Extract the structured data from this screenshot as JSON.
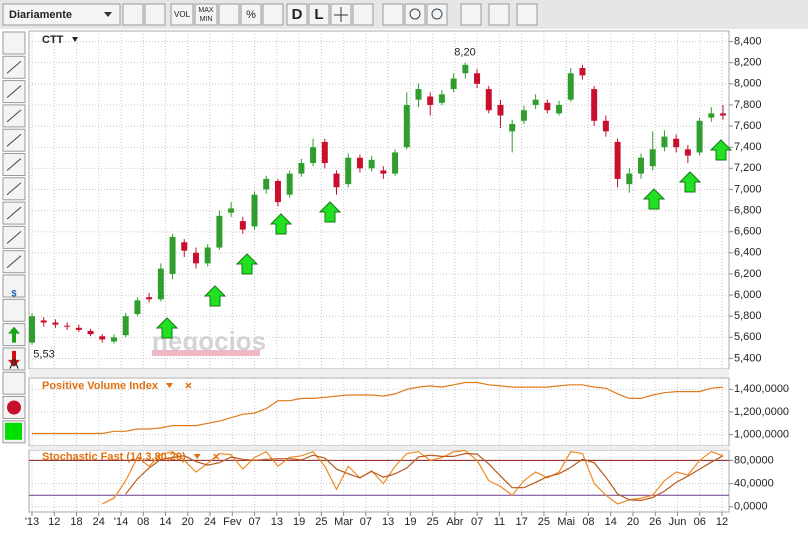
{
  "toolbar": {
    "interval": "Diariamente",
    "vol": "VOL",
    "maxmin": [
      "MAX",
      "MIN"
    ],
    "percent": "%",
    "d": "D",
    "l": "L"
  },
  "left_tools": {
    "dollar": "$",
    "a": "A"
  },
  "x_axis": {
    "labels": [
      "'13",
      "12",
      "18",
      "24",
      "'14",
      "08",
      "14",
      "20",
      "24",
      "Fev",
      "07",
      "13",
      "19",
      "25",
      "Mar",
      "07",
      "13",
      "19",
      "25",
      "Abr",
      "07",
      "11",
      "17",
      "25",
      "Mai",
      "08",
      "14",
      "20",
      "26",
      "Jun",
      "06",
      "12"
    ]
  },
  "chart_data": [
    {
      "type": "candlestick",
      "title": "CTT",
      "watermark": "negocios",
      "up_color": "#2f9e2f",
      "down_color": "#c8102e",
      "grid": true,
      "open": [
        5.55,
        5.76,
        5.74,
        5.71,
        5.69,
        5.66,
        5.61,
        5.56,
        5.62,
        5.82,
        5.98,
        5.96,
        6.2,
        6.5,
        6.4,
        6.3,
        6.45,
        6.78,
        6.7,
        6.65,
        7.0,
        7.08,
        6.95,
        7.15,
        7.25,
        7.45,
        7.15,
        7.05,
        7.3,
        7.2,
        7.18,
        7.15,
        7.4,
        7.85,
        7.88,
        7.82,
        7.95,
        8.1,
        8.1,
        7.95,
        7.8,
        7.55,
        7.65,
        7.8,
        7.82,
        7.72,
        7.85,
        8.15,
        7.95,
        7.65,
        7.45,
        7.05,
        7.15,
        7.22,
        7.4,
        7.48,
        7.38,
        7.35,
        7.68,
        7.72
      ],
      "high": [
        5.83,
        5.79,
        5.77,
        5.74,
        5.72,
        5.68,
        5.63,
        5.63,
        5.83,
        5.98,
        6.02,
        6.3,
        6.58,
        6.53,
        6.45,
        6.48,
        6.8,
        6.88,
        6.74,
        6.98,
        7.13,
        7.1,
        7.18,
        7.29,
        7.48,
        7.48,
        7.18,
        7.34,
        7.33,
        7.32,
        7.22,
        7.38,
        7.92,
        8.0,
        7.92,
        7.94,
        8.1,
        8.2,
        8.14,
        7.98,
        7.85,
        7.66,
        7.79,
        7.9,
        7.85,
        7.84,
        8.15,
        8.18,
        7.98,
        7.7,
        7.48,
        7.2,
        7.34,
        7.55,
        7.56,
        7.52,
        7.42,
        7.68,
        7.78,
        7.8
      ],
      "low": [
        5.53,
        5.7,
        5.69,
        5.67,
        5.65,
        5.61,
        5.55,
        5.54,
        5.6,
        5.8,
        5.93,
        5.94,
        6.15,
        6.36,
        6.25,
        6.27,
        6.43,
        6.74,
        6.58,
        6.62,
        6.96,
        6.84,
        6.92,
        7.12,
        7.22,
        7.2,
        6.95,
        7.02,
        7.16,
        7.17,
        7.1,
        7.13,
        7.38,
        7.78,
        7.7,
        7.8,
        7.92,
        8.05,
        7.96,
        7.72,
        7.58,
        7.35,
        7.62,
        7.76,
        7.72,
        7.7,
        7.83,
        8.04,
        7.6,
        7.5,
        7.02,
        6.97,
        7.1,
        7.18,
        7.36,
        7.35,
        7.25,
        7.32,
        7.64,
        7.66
      ],
      "close": [
        5.8,
        5.74,
        5.72,
        5.7,
        5.67,
        5.63,
        5.58,
        5.6,
        5.8,
        5.95,
        5.96,
        6.25,
        6.55,
        6.42,
        6.3,
        6.45,
        6.75,
        6.82,
        6.62,
        6.95,
        7.1,
        6.88,
        7.15,
        7.25,
        7.4,
        7.25,
        7.02,
        7.3,
        7.2,
        7.28,
        7.15,
        7.35,
        7.8,
        7.95,
        7.8,
        7.9,
        8.05,
        8.18,
        8.0,
        7.75,
        7.7,
        7.62,
        7.75,
        7.85,
        7.75,
        7.8,
        8.1,
        8.08,
        7.65,
        7.55,
        7.1,
        7.15,
        7.3,
        7.38,
        7.5,
        7.4,
        7.32,
        7.65,
        7.72,
        7.7
      ],
      "ylim": [
        5.3,
        8.5
      ],
      "yticks": [
        {
          "value": 5.4,
          "label": "5,400"
        },
        {
          "value": 5.6,
          "label": "5,600"
        },
        {
          "value": 5.8,
          "label": "5,800"
        },
        {
          "value": 6.0,
          "label": "6,000"
        },
        {
          "value": 6.2,
          "label": "6,200"
        },
        {
          "value": 6.4,
          "label": "6,400"
        },
        {
          "value": 6.6,
          "label": "6,600"
        },
        {
          "value": 6.8,
          "label": "6,800"
        },
        {
          "value": 7.0,
          "label": "7,000"
        },
        {
          "value": 7.2,
          "label": "7,200"
        },
        {
          "value": 7.4,
          "label": "7,400"
        },
        {
          "value": 7.6,
          "label": "7,600"
        },
        {
          "value": 7.8,
          "label": "7,800"
        },
        {
          "value": 8.0,
          "label": "8,000"
        },
        {
          "value": 8.2,
          "label": "8,200"
        },
        {
          "value": 8.4,
          "label": "8,400"
        }
      ],
      "annotations": [
        {
          "value": 8.2,
          "label": "8,20"
        },
        {
          "value": 5.53,
          "label": "5,53"
        }
      ]
    },
    {
      "type": "line",
      "title": "Positive Volume Index",
      "grid": true,
      "series": [
        {
          "color": "#e07b1a",
          "values": [
            1010000,
            1010000,
            1010000,
            1010000,
            1010000,
            1010000,
            1010000,
            1030000,
            1030000,
            1050000,
            1050000,
            1060000,
            1080000,
            1080000,
            1080000,
            1100000,
            1120000,
            1150000,
            1180000,
            1190000,
            1230000,
            1300000,
            1300000,
            1320000,
            1320000,
            1330000,
            1340000,
            1350000,
            1350000,
            1350000,
            1340000,
            1360000,
            1400000,
            1420000,
            1430000,
            1420000,
            1440000,
            1460000,
            1460000,
            1440000,
            1430000,
            1420000,
            1420000,
            1420000,
            1420000,
            1430000,
            1440000,
            1440000,
            1420000,
            1410000,
            1360000,
            1320000,
            1320000,
            1350000,
            1370000,
            1380000,
            1380000,
            1380000,
            1410000,
            1420000
          ]
        }
      ],
      "ylim": [
        900000,
        1500000
      ],
      "yticks": [
        {
          "value": 1000000,
          "label": "1,000,0000"
        },
        {
          "value": 1200000,
          "label": "1,200,0000"
        },
        {
          "value": 1400000,
          "label": "1,400,0000"
        }
      ]
    },
    {
      "type": "line",
      "title": "Stochastic Fast (14,3,80,20)",
      "grid": true,
      "series": [
        {
          "color": "#f08a24",
          "values": [
            null,
            null,
            null,
            null,
            null,
            null,
            5,
            15,
            45,
            85,
            70,
            90,
            95,
            80,
            60,
            75,
            92,
            90,
            65,
            85,
            95,
            70,
            85,
            88,
            95,
            70,
            30,
            70,
            50,
            62,
            40,
            70,
            92,
            95,
            80,
            85,
            95,
            97,
            80,
            45,
            35,
            20,
            45,
            60,
            50,
            60,
            95,
            92,
            40,
            20,
            5,
            12,
            15,
            20,
            45,
            60,
            55,
            80,
            95,
            88
          ]
        },
        {
          "color": "#b85a1e",
          "values": [
            null,
            null,
            null,
            null,
            null,
            null,
            null,
            null,
            22,
            48,
            67,
            82,
            85,
            88,
            78,
            72,
            76,
            86,
            82,
            80,
            82,
            83,
            83,
            81,
            89,
            84,
            65,
            57,
            50,
            61,
            51,
            57,
            67,
            86,
            89,
            87,
            87,
            92,
            91,
            74,
            53,
            33,
            33,
            42,
            52,
            57,
            68,
            82,
            76,
            51,
            22,
            12,
            11,
            16,
            27,
            42,
            53,
            65,
            77,
            88
          ]
        }
      ],
      "levels": [
        {
          "value": 80,
          "color": "#8b1a1a"
        },
        {
          "value": 20,
          "color": "#6a3d8f"
        }
      ],
      "ylim": [
        -9,
        98
      ],
      "yticks": [
        {
          "value": 0,
          "label": "0,0000"
        },
        {
          "value": 40,
          "label": "40,0000"
        },
        {
          "value": 80,
          "label": "80,0000"
        }
      ]
    }
  ]
}
